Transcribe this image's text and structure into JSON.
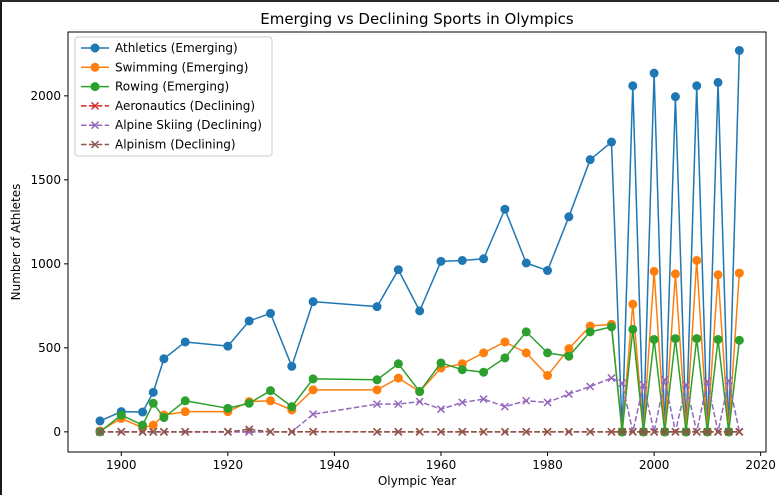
{
  "chart_data": {
    "type": "line",
    "title": "Emerging vs Declining Sports in Olympics",
    "xlabel": "Olympic Year",
    "ylabel": "Number of Athletes",
    "xlim": [
      1890,
      2021
    ],
    "ylim": [
      -120,
      2380
    ],
    "xticks": [
      1900,
      1920,
      1940,
      1960,
      1980,
      2000,
      2020
    ],
    "yticks": [
      0,
      500,
      1000,
      1500,
      2000
    ],
    "grid": false,
    "legend_position": "upper-left",
    "x": [
      1896,
      1900,
      1904,
      1906,
      1908,
      1912,
      1920,
      1924,
      1928,
      1932,
      1936,
      1948,
      1952,
      1956,
      1960,
      1964,
      1968,
      1972,
      1976,
      1980,
      1984,
      1988,
      1992,
      1994,
      1996,
      1998,
      2000,
      2002,
      2004,
      2006,
      2008,
      2010,
      2012,
      2014,
      2016
    ],
    "series": [
      {
        "name": "Athletics (Emerging)",
        "color": "#1f77b4",
        "style": "solid",
        "marker": "circle",
        "values": [
          65,
          120,
          118,
          235,
          435,
          535,
          510,
          660,
          705,
          390,
          775,
          745,
          965,
          720,
          1015,
          1020,
          1030,
          1325,
          1005,
          960,
          1280,
          1620,
          1725,
          0,
          2060,
          0,
          2135,
          0,
          1995,
          0,
          2060,
          0,
          2080,
          0,
          2270
        ]
      },
      {
        "name": "Swimming (Emerging)",
        "color": "#ff7f0e",
        "style": "solid",
        "marker": "circle",
        "values": [
          5,
          80,
          25,
          40,
          100,
          120,
          120,
          180,
          185,
          130,
          250,
          250,
          320,
          240,
          380,
          405,
          470,
          535,
          470,
          335,
          495,
          630,
          640,
          0,
          760,
          0,
          955,
          0,
          940,
          0,
          1020,
          0,
          935,
          0,
          945
        ]
      },
      {
        "name": "Rowing (Emerging)",
        "color": "#2ca02c",
        "style": "solid",
        "marker": "circle",
        "values": [
          0,
          100,
          40,
          170,
          85,
          185,
          140,
          170,
          245,
          150,
          315,
          310,
          405,
          240,
          410,
          370,
          355,
          440,
          595,
          470,
          450,
          595,
          625,
          0,
          610,
          0,
          550,
          0,
          555,
          0,
          555,
          0,
          550,
          0,
          545
        ]
      },
      {
        "name": "Aeronautics (Declining)",
        "color": "#d62728",
        "style": "dashed",
        "marker": "x",
        "values": [
          0,
          0,
          0,
          0,
          0,
          0,
          0,
          0,
          0,
          0,
          1,
          0,
          0,
          0,
          0,
          0,
          0,
          0,
          0,
          0,
          0,
          0,
          0,
          0,
          0,
          0,
          0,
          0,
          0,
          0,
          0,
          0,
          0,
          0,
          0
        ]
      },
      {
        "name": "Alpine Skiing (Declining)",
        "color": "#9467bd",
        "style": "dashed",
        "marker": "x",
        "values": [
          0,
          0,
          0,
          0,
          0,
          0,
          0,
          0,
          0,
          0,
          105,
          165,
          165,
          180,
          135,
          175,
          195,
          150,
          185,
          175,
          225,
          270,
          320,
          290,
          0,
          280,
          0,
          310,
          0,
          280,
          0,
          300,
          0,
          305,
          0
        ]
      },
      {
        "name": "Alpinism (Declining)",
        "color": "#8c564b",
        "style": "dashed",
        "marker": "x",
        "values": [
          0,
          0,
          0,
          0,
          0,
          0,
          0,
          15,
          0,
          0,
          0,
          0,
          0,
          0,
          0,
          0,
          0,
          0,
          0,
          0,
          0,
          0,
          0,
          0,
          0,
          0,
          0,
          0,
          0,
          0,
          0,
          0,
          0,
          0,
          0
        ]
      }
    ]
  }
}
